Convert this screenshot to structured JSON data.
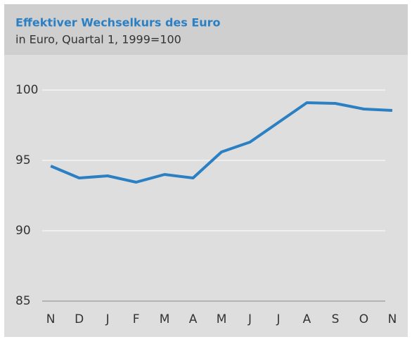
{
  "chart_data": {
    "type": "line",
    "title": "Effektiver Wechselkurs des Euro",
    "subtitle": "in Euro, Quartal 1, 1999=100",
    "categories": [
      "N",
      "D",
      "J",
      "F",
      "M",
      "A",
      "M",
      "J",
      "J",
      "A",
      "S",
      "O",
      "N"
    ],
    "series": [
      {
        "name": "Effektiver Wechselkurs",
        "color": "#2b7fc3",
        "values": [
          94.6,
          93.75,
          93.9,
          93.45,
          94.0,
          93.75,
          95.6,
          96.3,
          97.7,
          99.1,
          99.05,
          98.65,
          98.55
        ]
      }
    ],
    "ylim": [
      85,
      100
    ],
    "yticks": [
      85,
      90,
      95,
      100
    ],
    "grid": true
  }
}
